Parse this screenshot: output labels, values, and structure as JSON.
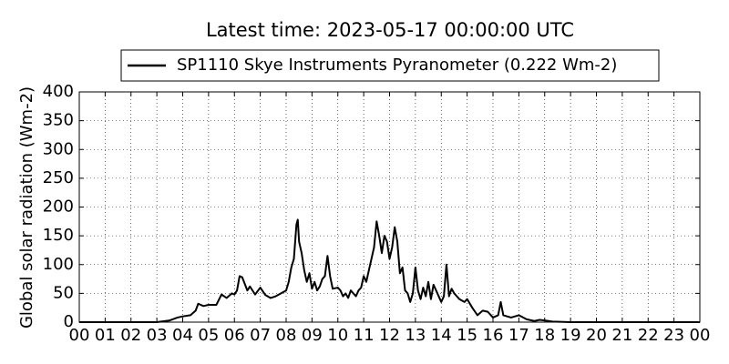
{
  "chart_data": {
    "type": "line",
    "title": "Latest time: 2023-05-17 00:00:00 UTC",
    "y_label": "Global solar radiation (Wm-2)",
    "series": [
      {
        "name": "SP1110 Skye Instruments Pyranometer (0.222 Wm-2)",
        "color": "#000000",
        "x": [
          0,
          3.0,
          3.5,
          3.8,
          4.0,
          4.3,
          4.5,
          4.6,
          4.8,
          5.0,
          5.3,
          5.5,
          5.7,
          5.9,
          6.0,
          6.1,
          6.2,
          6.3,
          6.5,
          6.6,
          6.8,
          7.0,
          7.2,
          7.4,
          7.6,
          7.8,
          8.0,
          8.1,
          8.2,
          8.3,
          8.4,
          8.45,
          8.5,
          8.6,
          8.7,
          8.8,
          8.9,
          9.0,
          9.1,
          9.2,
          9.3,
          9.4,
          9.5,
          9.6,
          9.7,
          9.8,
          10.0,
          10.1,
          10.2,
          10.3,
          10.4,
          10.5,
          10.6,
          10.7,
          10.8,
          10.9,
          11.0,
          11.1,
          11.2,
          11.3,
          11.4,
          11.5,
          11.6,
          11.7,
          11.8,
          11.9,
          12.0,
          12.1,
          12.2,
          12.3,
          12.4,
          12.5,
          12.6,
          12.7,
          12.8,
          12.9,
          13.0,
          13.1,
          13.2,
          13.3,
          13.4,
          13.5,
          13.6,
          13.7,
          13.8,
          13.9,
          14.0,
          14.1,
          14.2,
          14.3,
          14.4,
          14.5,
          14.7,
          14.9,
          15.0,
          15.2,
          15.4,
          15.6,
          15.8,
          16.0,
          16.2,
          16.3,
          16.4,
          16.7,
          17.0,
          17.3,
          17.6,
          17.8,
          18.0,
          18.3,
          19.0,
          24.0
        ],
        "values": [
          0,
          0,
          3,
          8,
          10,
          12,
          20,
          32,
          28,
          30,
          30,
          48,
          42,
          50,
          48,
          55,
          80,
          78,
          55,
          62,
          48,
          60,
          47,
          42,
          45,
          50,
          55,
          70,
          95,
          110,
          170,
          178,
          140,
          120,
          90,
          70,
          85,
          58,
          70,
          55,
          62,
          75,
          80,
          115,
          80,
          58,
          60,
          55,
          45,
          50,
          42,
          55,
          50,
          45,
          55,
          60,
          80,
          70,
          90,
          110,
          130,
          175,
          150,
          120,
          150,
          140,
          110,
          130,
          165,
          140,
          85,
          95,
          55,
          50,
          35,
          50,
          95,
          55,
          40,
          60,
          45,
          70,
          40,
          65,
          55,
          45,
          35,
          45,
          100,
          45,
          58,
          50,
          40,
          35,
          40,
          25,
          12,
          20,
          18,
          8,
          12,
          35,
          12,
          8,
          12,
          5,
          2,
          4,
          3,
          1,
          0,
          0
        ]
      }
    ],
    "xlim": [
      0,
      24
    ],
    "xticks": [
      {
        "value": 0,
        "label": "00"
      },
      {
        "value": 1,
        "label": "01"
      },
      {
        "value": 2,
        "label": "02"
      },
      {
        "value": 3,
        "label": "03"
      },
      {
        "value": 4,
        "label": "04"
      },
      {
        "value": 5,
        "label": "05"
      },
      {
        "value": 6,
        "label": "06"
      },
      {
        "value": 7,
        "label": "07"
      },
      {
        "value": 8,
        "label": "08"
      },
      {
        "value": 9,
        "label": "09"
      },
      {
        "value": 10,
        "label": "10"
      },
      {
        "value": 11,
        "label": "11"
      },
      {
        "value": 12,
        "label": "12"
      },
      {
        "value": 13,
        "label": "13"
      },
      {
        "value": 14,
        "label": "14"
      },
      {
        "value": 15,
        "label": "15"
      },
      {
        "value": 16,
        "label": "16"
      },
      {
        "value": 17,
        "label": "17"
      },
      {
        "value": 18,
        "label": "18"
      },
      {
        "value": 19,
        "label": "19"
      },
      {
        "value": 20,
        "label": "20"
      },
      {
        "value": 21,
        "label": "21"
      },
      {
        "value": 22,
        "label": "22"
      },
      {
        "value": 23,
        "label": "23"
      },
      {
        "value": 24,
        "label": "00"
      }
    ],
    "ylim": [
      0,
      400
    ],
    "yticks": [
      0,
      50,
      100,
      150,
      200,
      250,
      300,
      350,
      400
    ],
    "grid": true
  }
}
